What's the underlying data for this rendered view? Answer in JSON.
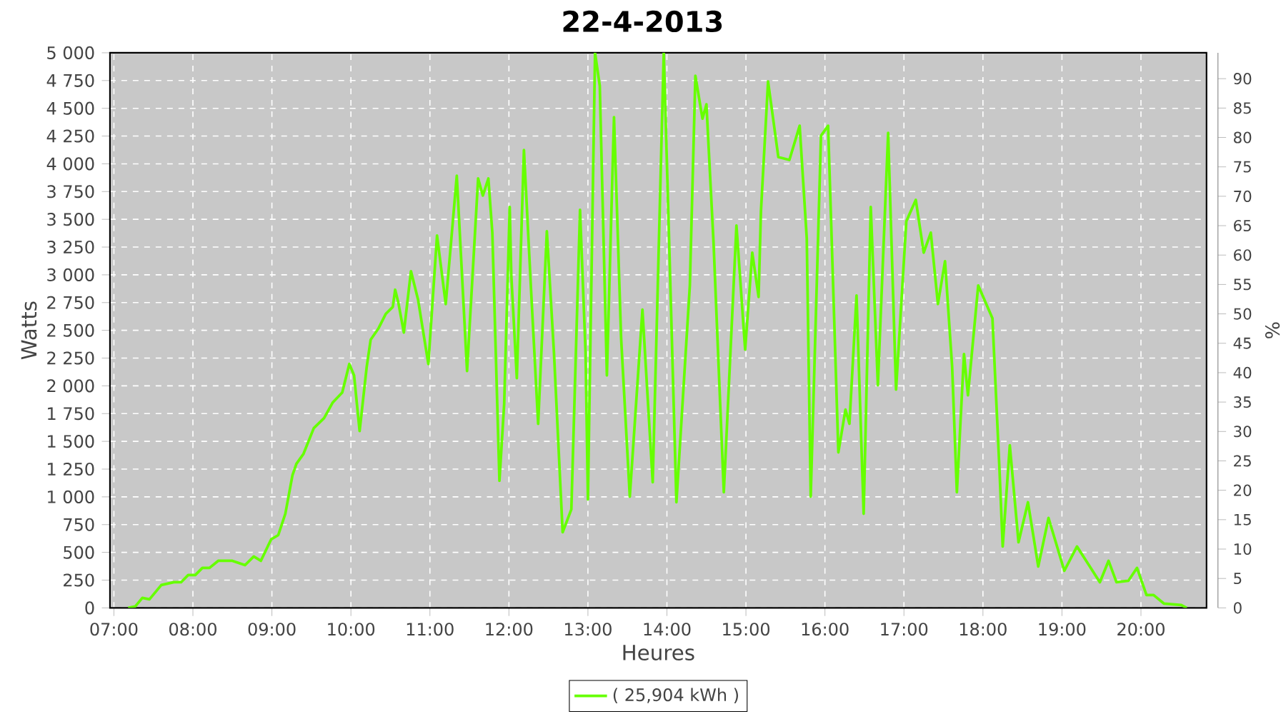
{
  "chart_data": {
    "type": "line",
    "title": "22-4-2013",
    "xlabel": "Heures",
    "ylabel": "Watts",
    "y2label": "%",
    "xlim": [
      6.95,
      20.83
    ],
    "ylim": [
      0,
      5000
    ],
    "y2lim": [
      0,
      94.4
    ],
    "xticks": [
      {
        "value": 7,
        "label": "07:00"
      },
      {
        "value": 8,
        "label": "08:00"
      },
      {
        "value": 9,
        "label": "09:00"
      },
      {
        "value": 10,
        "label": "10:00"
      },
      {
        "value": 11,
        "label": "11:00"
      },
      {
        "value": 12,
        "label": "12:00"
      },
      {
        "value": 13,
        "label": "13:00"
      },
      {
        "value": 14,
        "label": "14:00"
      },
      {
        "value": 15,
        "label": "15:00"
      },
      {
        "value": 16,
        "label": "16:00"
      },
      {
        "value": 17,
        "label": "17:00"
      },
      {
        "value": 18,
        "label": "18:00"
      },
      {
        "value": 19,
        "label": "19:00"
      },
      {
        "value": 20,
        "label": "20:00"
      }
    ],
    "yticks": [
      0,
      250,
      500,
      750,
      {
        "value": 1000,
        "label": "1 000"
      },
      {
        "value": 1250,
        "label": "1 250"
      },
      {
        "value": 1500,
        "label": "1 500"
      },
      {
        "value": 1750,
        "label": "1 750"
      },
      {
        "value": 2000,
        "label": "2 000"
      },
      {
        "value": 2250,
        "label": "2 250"
      },
      {
        "value": 2500,
        "label": "2 500"
      },
      {
        "value": 2750,
        "label": "2 750"
      },
      {
        "value": 3000,
        "label": "3 000"
      },
      {
        "value": 3250,
        "label": "3 250"
      },
      {
        "value": 3500,
        "label": "3 500"
      },
      {
        "value": 3750,
        "label": "3 750"
      },
      {
        "value": 4000,
        "label": "4 000"
      },
      {
        "value": 4250,
        "label": "4 250"
      },
      {
        "value": 4500,
        "label": "4 500"
      },
      {
        "value": 4750,
        "label": "4 750"
      },
      {
        "value": 5000,
        "label": "5 000"
      }
    ],
    "y2ticks": [
      0,
      5,
      10,
      15,
      20,
      25,
      30,
      35,
      40,
      45,
      50,
      55,
      60,
      65,
      70,
      75,
      80,
      85,
      90
    ],
    "grid": true,
    "legend": "bottom",
    "line_style": "solid",
    "marker": "none",
    "series": [
      {
        "name": "( 25,904 kWh )",
        "color": "#66ff00",
        "x": [
          7.18,
          7.27,
          7.36,
          7.45,
          7.6,
          7.76,
          7.85,
          7.94,
          8.03,
          8.12,
          8.21,
          8.32,
          8.5,
          8.66,
          8.77,
          8.86,
          8.99,
          9.08,
          9.17,
          9.26,
          9.31,
          9.4,
          9.53,
          9.66,
          9.77,
          9.89,
          9.98,
          10.04,
          10.11,
          10.2,
          10.25,
          10.35,
          10.44,
          10.53,
          10.56,
          10.6,
          10.67,
          10.76,
          10.85,
          10.98,
          11.09,
          11.2,
          11.34,
          11.47,
          11.61,
          11.67,
          11.74,
          11.79,
          11.88,
          11.94,
          12.01,
          12.03,
          12.1,
          12.19,
          12.28,
          12.37,
          12.48,
          12.57,
          12.68,
          12.79,
          12.9,
          12.97,
          13.0,
          13.09,
          13.15,
          13.24,
          13.33,
          13.42,
          13.53,
          13.69,
          13.82,
          13.96,
          14.03,
          14.12,
          14.29,
          14.36,
          14.45,
          14.5,
          14.59,
          14.72,
          14.88,
          14.99,
          15.08,
          15.16,
          15.19,
          15.28,
          15.41,
          15.55,
          15.68,
          15.77,
          15.82,
          15.95,
          16.04,
          16.17,
          16.26,
          16.31,
          16.4,
          16.49,
          16.58,
          16.67,
          16.8,
          16.9,
          17.03,
          17.15,
          17.25,
          17.34,
          17.43,
          17.52,
          17.61,
          17.67,
          17.76,
          17.81,
          17.94,
          18.12,
          18.21,
          18.25,
          18.34,
          18.45,
          18.57,
          18.7,
          18.83,
          19.03,
          19.19,
          19.48,
          19.59,
          19.69,
          19.84,
          19.95,
          20.07,
          20.16,
          20.29,
          20.51,
          20.58
        ],
        "values": [
          0,
          13,
          90,
          77,
          206,
          231,
          231,
          296,
          296,
          360,
          360,
          424,
          424,
          385,
          463,
          424,
          617,
          655,
          848,
          1195,
          1298,
          1388,
          1619,
          1709,
          1850,
          1940,
          2197,
          2094,
          1593,
          2172,
          2416,
          2519,
          2647,
          2711,
          2866,
          2750,
          2480,
          3033,
          2776,
          2197,
          3354,
          2737,
          3893,
          2133,
          3868,
          3714,
          3868,
          3380,
          1144,
          1838,
          3611,
          2994,
          2069,
          4125,
          2866,
          1658,
          3392,
          2300,
          681,
          887,
          3585,
          2300,
          977,
          5000,
          4703,
          2094,
          4420,
          2429,
          1002,
          2686,
          1131,
          5000,
          3251,
          951,
          2904,
          4793,
          4407,
          4536,
          3290,
          1041,
          3444,
          2326,
          3200,
          2801,
          3572,
          4742,
          4061,
          4035,
          4343,
          3328,
          1002,
          4253,
          4343,
          1401,
          1786,
          1658,
          2814,
          848,
          3611,
          2005,
          4279,
          1966,
          3482,
          3675,
          3200,
          3380,
          2737,
          3123,
          2172,
          1041,
          2287,
          1915,
          2904,
          2609,
          1234,
          553,
          1465,
          591,
          951,
          373,
          810,
          334,
          553,
          231,
          424,
          231,
          244,
          360,
          116,
          116,
          39,
          26,
          0
        ]
      }
    ]
  }
}
